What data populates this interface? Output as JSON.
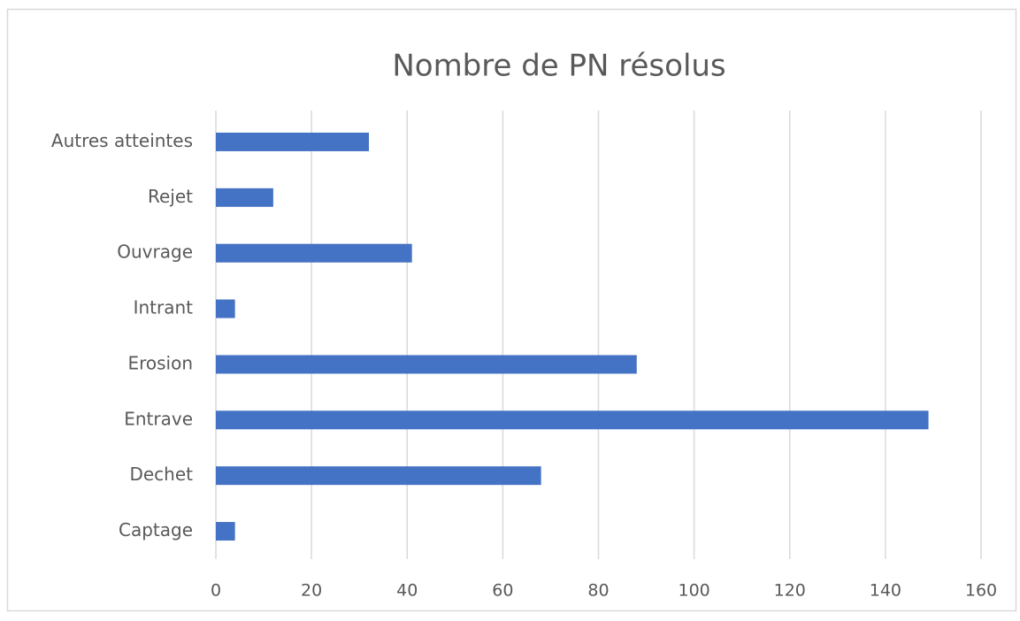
{
  "chart_data": {
    "type": "bar",
    "orientation": "horizontal",
    "title": "Nombre de PN résolus",
    "categories": [
      "Captage",
      "Dechet",
      "Entrave",
      "Erosion",
      "Intrant",
      "Ouvrage",
      "Rejet",
      "Autres atteintes"
    ],
    "values": [
      4,
      68,
      149,
      88,
      4,
      41,
      12,
      32
    ],
    "color": "#4472c4",
    "xlim": [
      0,
      160
    ],
    "xticks": [
      0,
      20,
      40,
      60,
      80,
      100,
      120,
      140,
      160
    ],
    "grid": true
  }
}
